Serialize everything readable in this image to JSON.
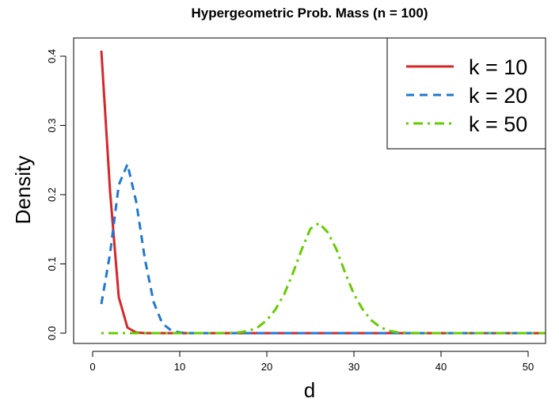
{
  "chart_data": {
    "type": "line",
    "title": "Hypergeometric Prob. Mass (n = 100)",
    "xlabel": "d",
    "ylabel": "Density",
    "xlim": [
      1,
      52
    ],
    "ylim": [
      0,
      0.41
    ],
    "xticks": [
      0,
      10,
      20,
      30,
      40,
      50
    ],
    "yticks": [
      0.0,
      0.1,
      0.2,
      0.3,
      0.4
    ],
    "ytick_labels": [
      "0.0",
      "0.1",
      "0.2",
      "0.3",
      "0.4"
    ],
    "legend_position": "top-right",
    "series": [
      {
        "name": "k = 10",
        "color": "#d62728",
        "dash": "solid",
        "x": [
          1,
          2,
          3,
          4,
          5,
          6,
          7,
          8,
          9,
          10,
          11,
          12,
          13,
          14,
          15,
          16,
          17,
          18,
          19,
          20,
          21,
          22,
          23,
          24,
          25,
          26,
          27,
          28,
          29,
          30,
          31,
          32,
          33,
          34,
          35,
          36,
          37,
          38,
          39,
          40,
          41,
          42,
          43,
          44,
          45,
          46,
          47,
          48,
          49,
          50,
          51,
          52
        ],
        "values": [
          0.408,
          0.205,
          0.052,
          0.008,
          0.001,
          0,
          0,
          0,
          0,
          0,
          0,
          0,
          0,
          0,
          0,
          0,
          0,
          0,
          0,
          0,
          0,
          0,
          0,
          0,
          0,
          0,
          0,
          0,
          0,
          0,
          0,
          0,
          0,
          0,
          0,
          0,
          0,
          0,
          0,
          0,
          0,
          0,
          0,
          0,
          0,
          0,
          0,
          0,
          0,
          0,
          0,
          0
        ]
      },
      {
        "name": "k = 20",
        "color": "#1f77d4",
        "dash": "dashed",
        "x": [
          1,
          2,
          3,
          4,
          5,
          6,
          7,
          8,
          9,
          10,
          11,
          12,
          13,
          14,
          15,
          16,
          17,
          18,
          19,
          20,
          21,
          22,
          23,
          24,
          25,
          26,
          27,
          28,
          29,
          30,
          31,
          32,
          33,
          34,
          35,
          36,
          37,
          38,
          39,
          40,
          41,
          42,
          43,
          44,
          45,
          46,
          47,
          48,
          49,
          50,
          51,
          52
        ],
        "values": [
          0.042,
          0.115,
          0.214,
          0.244,
          0.19,
          0.107,
          0.045,
          0.014,
          0.004,
          0.001,
          0,
          0,
          0,
          0,
          0,
          0,
          0,
          0,
          0,
          0,
          0,
          0,
          0,
          0,
          0,
          0,
          0,
          0,
          0,
          0,
          0,
          0,
          0,
          0,
          0,
          0,
          0,
          0,
          0,
          0,
          0,
          0,
          0,
          0,
          0,
          0,
          0,
          0,
          0,
          0,
          0,
          0
        ]
      },
      {
        "name": "k = 50",
        "color": "#66cc00",
        "dash": "dotdash",
        "x": [
          1,
          2,
          3,
          4,
          5,
          6,
          7,
          8,
          9,
          10,
          11,
          12,
          13,
          14,
          15,
          16,
          17,
          18,
          19,
          20,
          21,
          22,
          23,
          24,
          25,
          26,
          27,
          28,
          29,
          30,
          31,
          32,
          33,
          34,
          35,
          36,
          37,
          38,
          39,
          40,
          41,
          42,
          43,
          44,
          45,
          46,
          47,
          48,
          49,
          50,
          51,
          52
        ],
        "values": [
          0,
          0,
          0,
          0,
          0,
          0,
          0,
          0,
          0,
          0,
          0,
          0,
          0,
          0,
          0.0001,
          0.0004,
          0.0013,
          0.0036,
          0.0088,
          0.0186,
          0.0344,
          0.0563,
          0.0868,
          0.1208,
          0.1507,
          0.159,
          0.1455,
          0.1208,
          0.0868,
          0.0563,
          0.0344,
          0.0186,
          0.0088,
          0.0036,
          0.0013,
          0.0004,
          0.0001,
          0,
          0,
          0,
          0,
          0,
          0,
          0,
          0,
          0,
          0,
          0,
          0,
          0,
          0,
          0
        ]
      }
    ]
  }
}
